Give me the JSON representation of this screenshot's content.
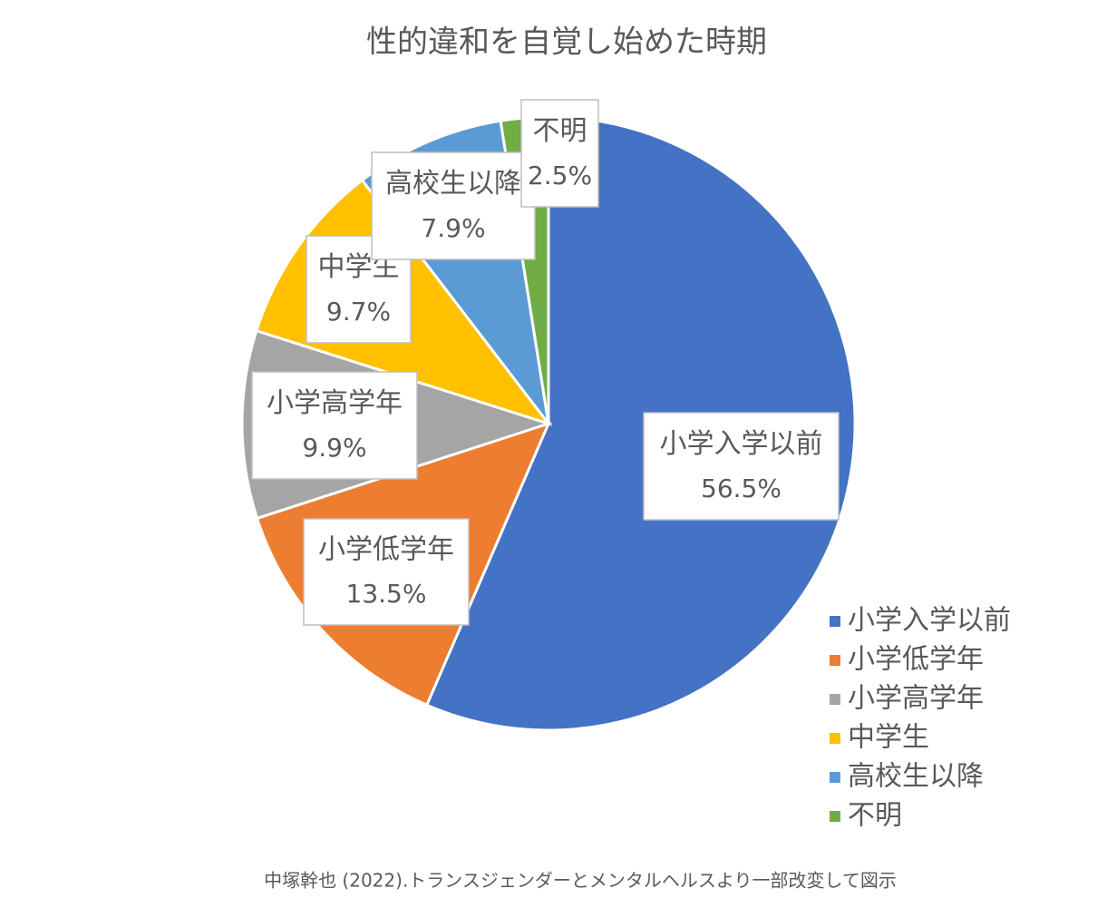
{
  "chart_data": {
    "type": "pie",
    "title": "性的違和を自覚し始めた時期",
    "categories": [
      "小学入学以前",
      "小学低学年",
      "小学高学年",
      "中学生",
      "高校生以降",
      "不明"
    ],
    "values": [
      56.5,
      13.5,
      9.9,
      9.7,
      7.9,
      2.5
    ],
    "value_labels": [
      "56.5%",
      "13.5%",
      "9.9%",
      "9.7%",
      "7.9%",
      "2.5%"
    ],
    "colors": [
      "#4472c4",
      "#ed7d31",
      "#a5a5a5",
      "#ffc000",
      "#5b9bd5",
      "#70ad47"
    ],
    "legend": "right",
    "source": "中塚幹也 (2022).トランスジェンダーとメンタルヘルスより一部改変して図示"
  }
}
